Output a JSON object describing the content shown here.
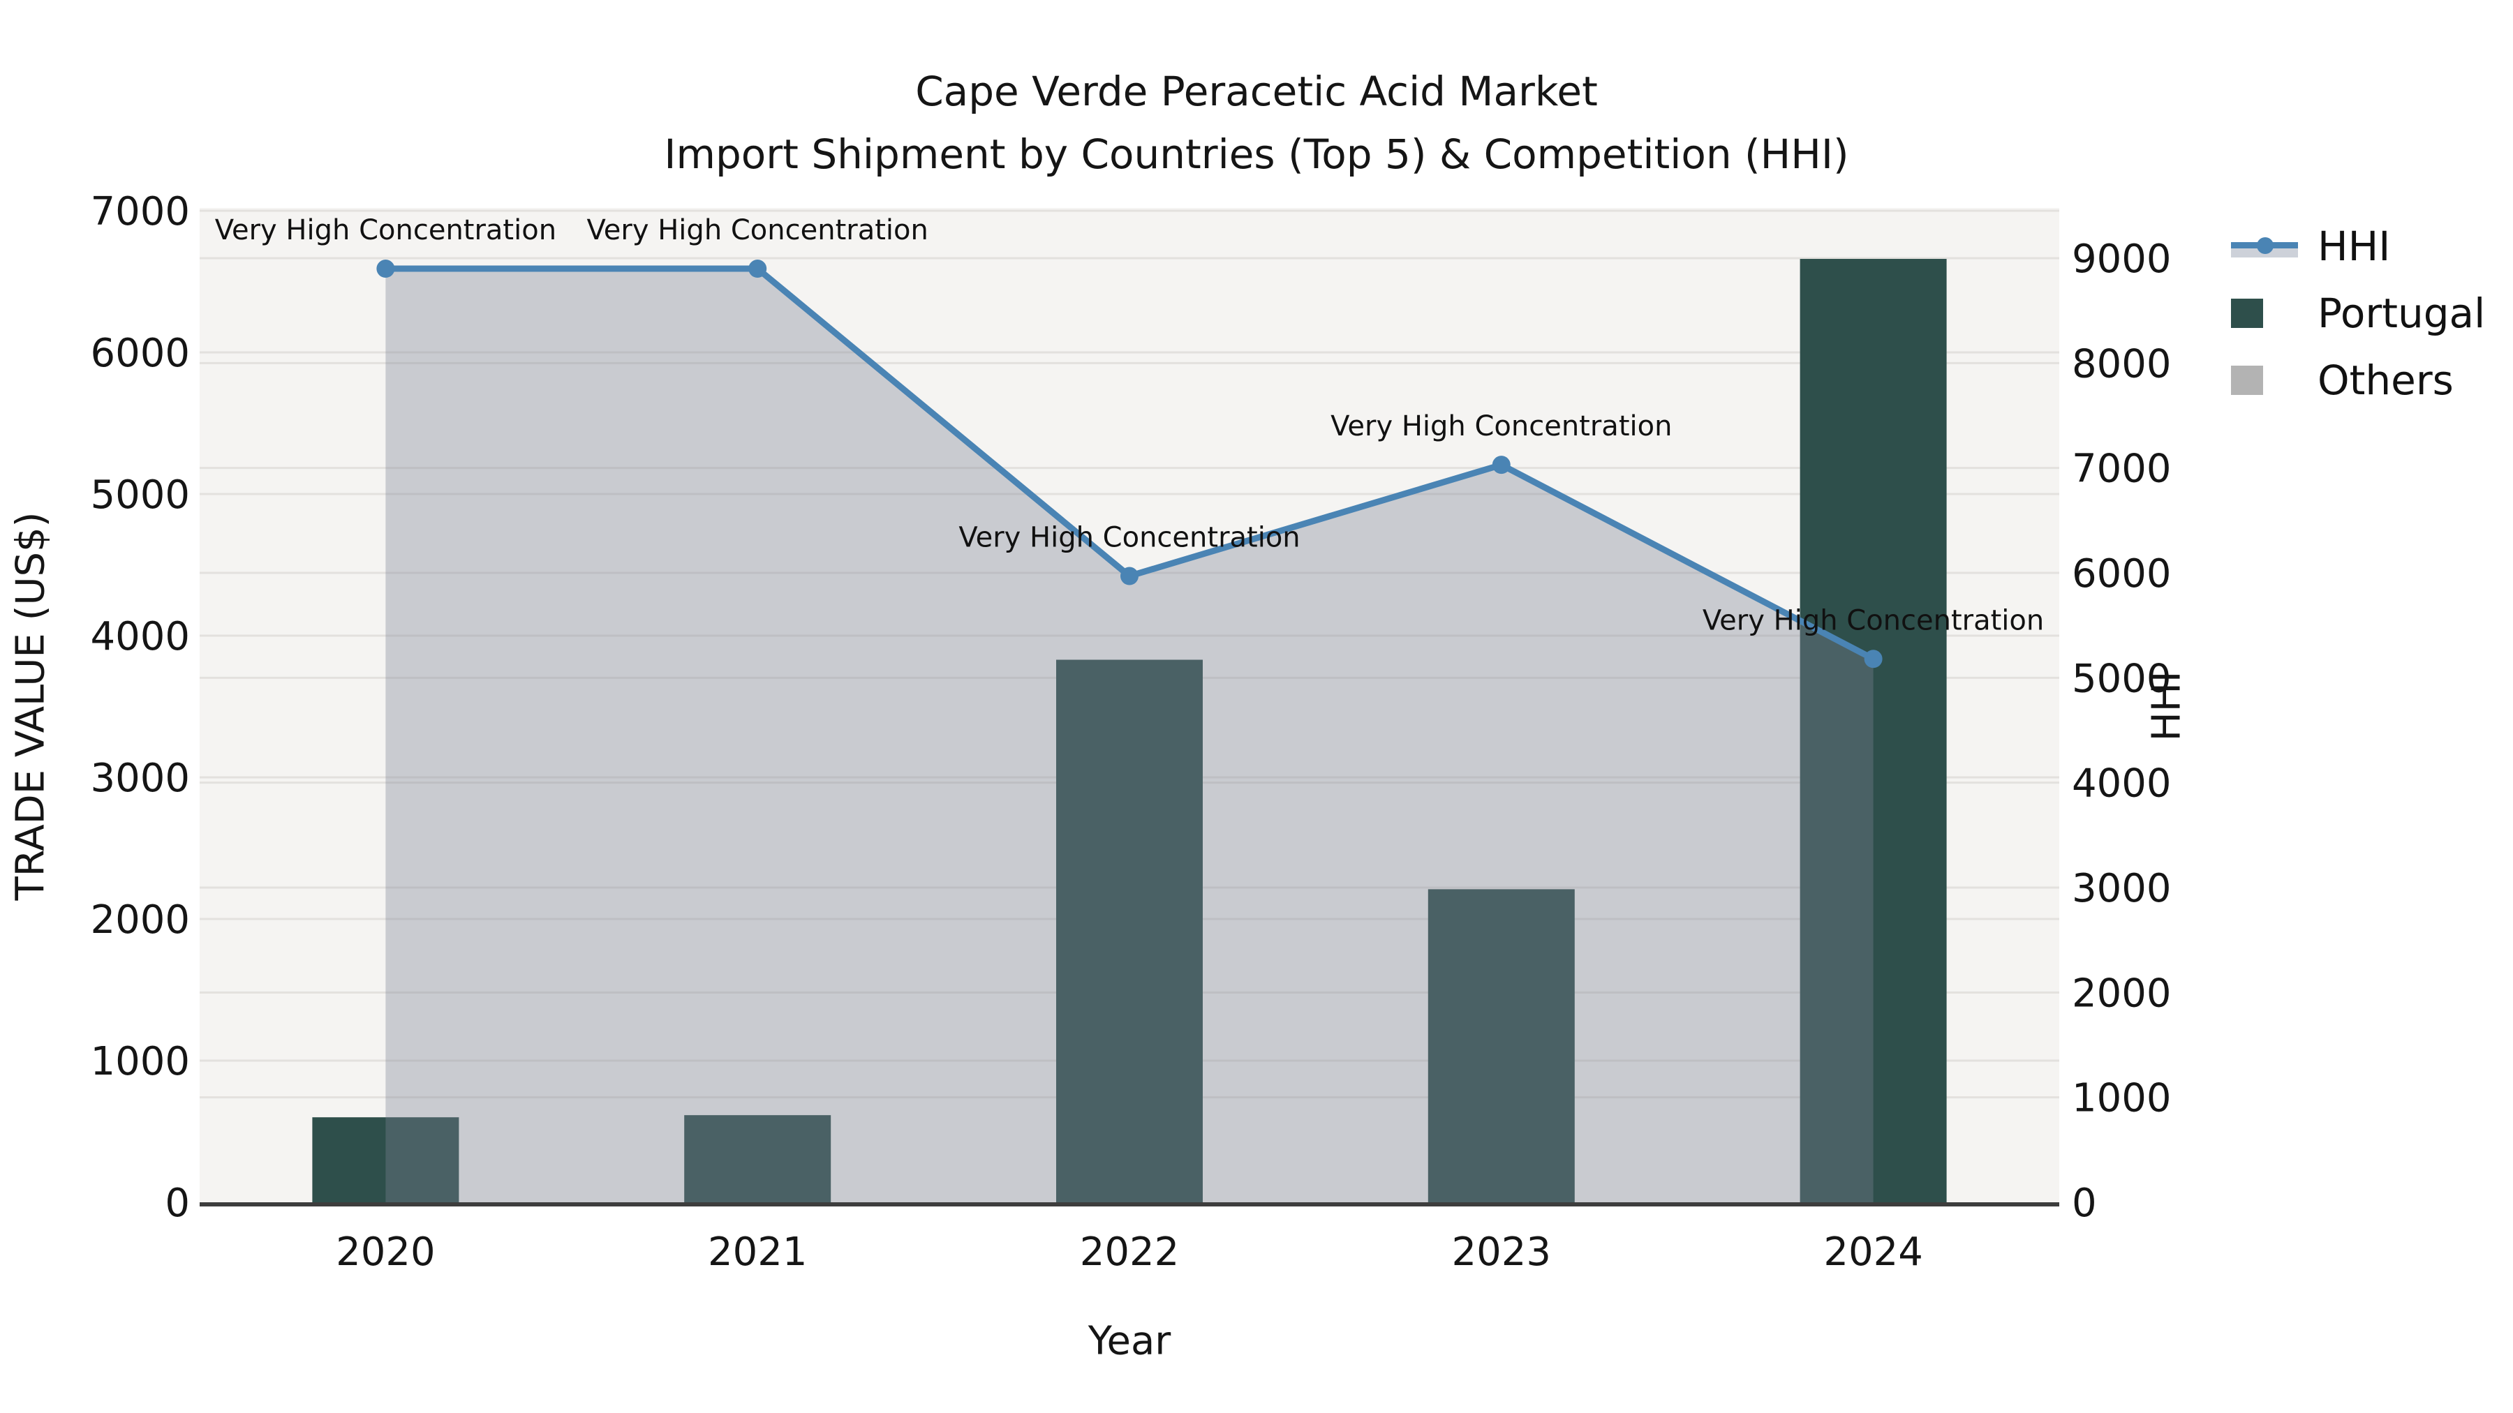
{
  "title": {
    "line1": "Cape Verde Peracetic Acid Market",
    "line2": "Import Shipment by Countries (Top 5) & Competition (HHI)"
  },
  "legend": {
    "items": [
      {
        "label": "HHI",
        "type": "line-marker",
        "color": "#4a84b4"
      },
      {
        "label": "Portugal",
        "type": "swatch",
        "color": "#2e4f4b"
      },
      {
        "label": "Others",
        "type": "swatch",
        "color": "#b3b3b3"
      }
    ]
  },
  "chart_data": {
    "type": "bar+line",
    "title": "Cape Verde Peracetic Acid Market",
    "subtitle": "Import Shipment by Countries (Top 5) & Competition (HHI)",
    "categories": [
      "2020",
      "2021",
      "2022",
      "2023",
      "2024"
    ],
    "x_axis": {
      "label": "Year"
    },
    "left_axis": {
      "label": "TRADE VALUE (US$)",
      "min": 0,
      "max": 7000,
      "tick_step": 1000,
      "ticks": [
        0,
        1000,
        2000,
        3000,
        4000,
        5000,
        6000,
        7000
      ]
    },
    "right_axis": {
      "label": "HHI",
      "min": 0,
      "max": 9000,
      "tick_step": 1000,
      "ticks": [
        0,
        1000,
        2000,
        3000,
        4000,
        5000,
        6000,
        7000,
        8000,
        9000
      ]
    },
    "series": [
      {
        "name": "Portugal",
        "type": "bar",
        "axis": "left",
        "color": "#2e4f4b",
        "values": [
          600,
          615,
          3830,
          2210,
          6660
        ]
      },
      {
        "name": "Others",
        "type": "bar",
        "axis": "left",
        "color": "#b3b3b3",
        "values": [
          0,
          0,
          0,
          0,
          0
        ]
      },
      {
        "name": "HHI",
        "type": "line",
        "axis": "right",
        "color": "#4a84b4",
        "area_fill": "rgba(125,131,146,0.36)",
        "values": [
          8900,
          8900,
          5970,
          7030,
          5180
        ]
      }
    ],
    "annotations": [
      {
        "category": "2020",
        "label": "Very High Concentration"
      },
      {
        "category": "2021",
        "label": "Very High Concentration"
      },
      {
        "category": "2022",
        "label": "Very High Concentration"
      },
      {
        "category": "2023",
        "label": "Very High Concentration"
      },
      {
        "category": "2024",
        "label": "Very High Concentration"
      }
    ],
    "grid": true,
    "legend_position": "upper-right-outside",
    "plot_background": "#f5f4f2",
    "gridline_color": "#e3e1de",
    "axis_line_color": "#3d3d3d"
  }
}
